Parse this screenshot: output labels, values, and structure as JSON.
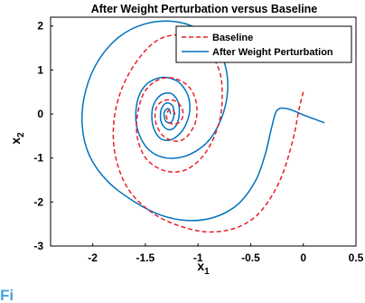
{
  "chart_data": {
    "type": "line",
    "title": "After Weight Perturbation versus Baseline",
    "xlabel": "x",
    "xlabel_sub": "1",
    "ylabel": "x",
    "ylabel_sub": "2",
    "xlim": [
      -2.4,
      0.5
    ],
    "ylim": [
      -3,
      2.2
    ],
    "xticks": [
      -2,
      -1.5,
      -1,
      -0.5,
      0,
      0.5
    ],
    "xtick_labels": [
      "-2",
      "-1.5",
      "-1",
      "-0.5",
      "0",
      "0.5"
    ],
    "yticks": [
      -3,
      -2,
      -1,
      0,
      1,
      2
    ],
    "ytick_labels": [
      "-3",
      "-2",
      "-1",
      "0",
      "1",
      "2"
    ],
    "grid": false,
    "legend_position": "top-right",
    "series": [
      {
        "name": "Baseline",
        "color": "#e8202a",
        "style": "dashed",
        "points": [
          [
            0.0,
            0.5
          ],
          [
            -0.04,
            0.12
          ],
          [
            -0.1,
            -0.6
          ],
          [
            -0.22,
            -1.5
          ],
          [
            -0.4,
            -2.2
          ],
          [
            -0.6,
            -2.55
          ],
          [
            -0.85,
            -2.68
          ],
          [
            -1.1,
            -2.6
          ],
          [
            -1.4,
            -2.3
          ],
          [
            -1.65,
            -1.75
          ],
          [
            -1.78,
            -1.0
          ],
          [
            -1.8,
            -0.2
          ],
          [
            -1.72,
            0.6
          ],
          [
            -1.55,
            1.3
          ],
          [
            -1.35,
            1.72
          ],
          [
            -1.1,
            1.78
          ],
          [
            -0.92,
            1.5
          ],
          [
            -0.8,
            1.0
          ],
          [
            -0.77,
            0.45
          ],
          [
            -0.8,
            -0.2
          ],
          [
            -0.92,
            -0.85
          ],
          [
            -1.1,
            -1.25
          ],
          [
            -1.3,
            -1.3
          ],
          [
            -1.48,
            -1.05
          ],
          [
            -1.57,
            -0.6
          ],
          [
            -1.58,
            -0.1
          ],
          [
            -1.52,
            0.45
          ],
          [
            -1.4,
            0.75
          ],
          [
            -1.25,
            0.82
          ],
          [
            -1.1,
            0.65
          ],
          [
            -1.02,
            0.3
          ],
          [
            -1.02,
            -0.15
          ],
          [
            -1.1,
            -0.5
          ],
          [
            -1.2,
            -0.62
          ],
          [
            -1.33,
            -0.5
          ],
          [
            -1.4,
            -0.2
          ],
          [
            -1.4,
            0.12
          ],
          [
            -1.33,
            0.3
          ],
          [
            -1.22,
            0.3
          ],
          [
            -1.15,
            0.12
          ],
          [
            -1.15,
            -0.1
          ],
          [
            -1.2,
            -0.22
          ],
          [
            -1.27,
            -0.2
          ],
          [
            -1.3,
            -0.05
          ],
          [
            -1.28,
            0.08
          ],
          [
            -1.24,
            0.08
          ],
          [
            -1.22,
            0.0
          ],
          [
            -1.24,
            -0.06
          ]
        ]
      },
      {
        "name": "After Weight Perturbation",
        "color": "#0072bd",
        "style": "solid",
        "points": [
          [
            0.2,
            -0.2
          ],
          [
            0.02,
            -0.04
          ],
          [
            -0.15,
            0.12
          ],
          [
            -0.25,
            0.08
          ],
          [
            -0.3,
            -0.3
          ],
          [
            -0.36,
            -0.9
          ],
          [
            -0.45,
            -1.5
          ],
          [
            -0.62,
            -2.05
          ],
          [
            -0.85,
            -2.35
          ],
          [
            -1.1,
            -2.42
          ],
          [
            -1.35,
            -2.3
          ],
          [
            -1.6,
            -2.0
          ],
          [
            -1.85,
            -1.55
          ],
          [
            -2.03,
            -0.95
          ],
          [
            -2.1,
            -0.25
          ],
          [
            -2.07,
            0.5
          ],
          [
            -1.95,
            1.2
          ],
          [
            -1.75,
            1.75
          ],
          [
            -1.5,
            2.05
          ],
          [
            -1.22,
            2.1
          ],
          [
            -0.98,
            1.9
          ],
          [
            -0.8,
            1.45
          ],
          [
            -0.72,
            0.8
          ],
          [
            -0.75,
            0.1
          ],
          [
            -0.88,
            -0.55
          ],
          [
            -1.08,
            -0.92
          ],
          [
            -1.3,
            -1.0
          ],
          [
            -1.48,
            -0.78
          ],
          [
            -1.58,
            -0.3
          ],
          [
            -1.58,
            0.25
          ],
          [
            -1.5,
            0.65
          ],
          [
            -1.35,
            0.83
          ],
          [
            -1.2,
            0.75
          ],
          [
            -1.1,
            0.45
          ],
          [
            -1.08,
            0.05
          ],
          [
            -1.14,
            -0.35
          ],
          [
            -1.25,
            -0.58
          ],
          [
            -1.36,
            -0.55
          ],
          [
            -1.43,
            -0.25
          ],
          [
            -1.43,
            0.15
          ],
          [
            -1.36,
            0.42
          ],
          [
            -1.26,
            0.47
          ],
          [
            -1.19,
            0.28
          ],
          [
            -1.18,
            -0.05
          ],
          [
            -1.22,
            -0.3
          ],
          [
            -1.29,
            -0.35
          ],
          [
            -1.35,
            -0.18
          ],
          [
            -1.35,
            0.1
          ],
          [
            -1.3,
            0.25
          ],
          [
            -1.24,
            0.18
          ],
          [
            -1.23,
            -0.05
          ],
          [
            -1.26,
            -0.2
          ],
          [
            -1.31,
            -0.15
          ],
          [
            -1.32,
            0.05
          ],
          [
            -1.28,
            0.12
          ],
          [
            -1.26,
            0.0
          ]
        ]
      }
    ]
  },
  "footer": {
    "corner_glyph": "Fi"
  }
}
